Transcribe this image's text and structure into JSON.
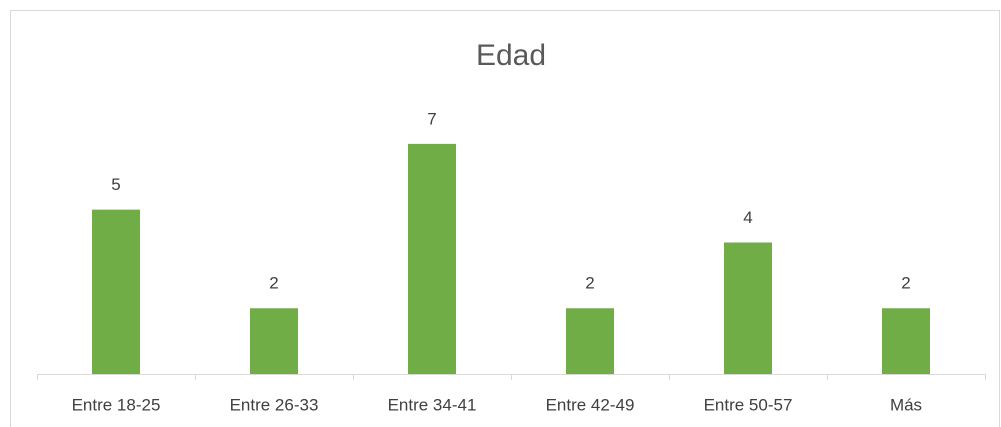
{
  "chart_data": {
    "type": "bar",
    "title": "Edad",
    "categories": [
      "Entre 18-25",
      "Entre 26-33",
      "Entre 34-41",
      "Entre 42-49",
      "Entre 50-57",
      "Más"
    ],
    "values": [
      5,
      2,
      7,
      2,
      4,
      2
    ],
    "color": "#70ad47",
    "ylim": [
      0,
      8
    ]
  }
}
